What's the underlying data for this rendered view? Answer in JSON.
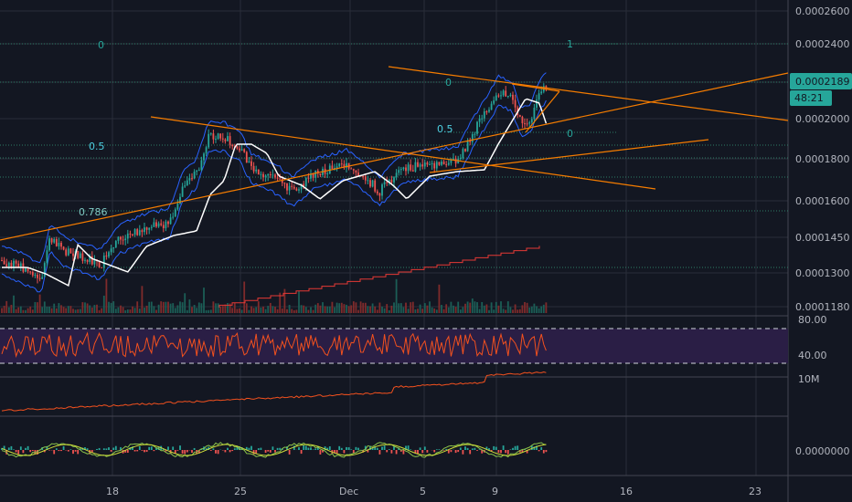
{
  "chart_data": {
    "type": "candlestick",
    "price_axis": {
      "ticks": [
        "0.0002600",
        "0.0002400",
        "0.0002000",
        "0.0001800",
        "0.0001600",
        "0.0001450",
        "0.0001300",
        "0.0001180"
      ],
      "current_price": "0.0002189",
      "countdown": "48:21"
    },
    "time_axis": {
      "ticks": [
        "18",
        "25",
        "Dec",
        "5",
        "9",
        "16",
        "23"
      ]
    },
    "fib_labels": {
      "upper_left_zero": "0",
      "upper_right_one": "1",
      "mid_zero": "0",
      "mid_half": "0.5",
      "right_zero": "0",
      "left_half": "0.5",
      "left_786": "0.786"
    },
    "rsi": {
      "ticks": [
        "80.00",
        "40.00"
      ],
      "upper_band": 70,
      "lower_band": 30
    },
    "obv": {
      "tick": "10M"
    },
    "macd": {
      "tick": "0.0000000"
    },
    "colors": {
      "background": "#131722",
      "grid": "#2a2e39",
      "up": "#26a69a",
      "down": "#ef5350",
      "trendline": "#f57c00",
      "bollinger": "#2962ff",
      "ma": "#ffffff",
      "price_tag": "#26a69a",
      "rsi_fill": "#2a1e45",
      "rsi_line": "#f4511e",
      "obv_line": "#f4511e",
      "step_line": "#e53935",
      "macd_line": "#8bc34a",
      "signal_line": "#cddc39",
      "fib_color": "#4db6ac"
    }
  }
}
